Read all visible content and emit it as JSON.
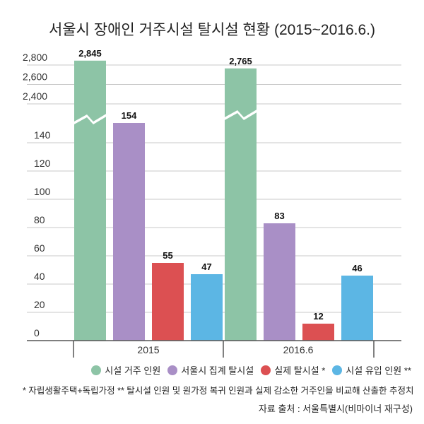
{
  "chart_data": {
    "type": "bar",
    "title": "서울시 장애인 거주시설 탈시설 현황 (2015~2016.6.)",
    "categories": [
      "2015",
      "2016.6"
    ],
    "series": [
      {
        "name": "시설 거주 인원",
        "color": "#8dc4a6",
        "values": [
          2845,
          2765
        ]
      },
      {
        "name": "서울시 집계 탈시설",
        "color": "#a98fc6",
        "values": [
          154,
          83
        ]
      },
      {
        "name": "실제 탈시설 *",
        "color": "#dc5052",
        "values": [
          55,
          12
        ]
      },
      {
        "name": "시설 유입 인원 **",
        "color": "#5cb6e4",
        "values": [
          47,
          46
        ]
      }
    ],
    "data_labels": [
      [
        "2,845",
        "154",
        "55",
        "47"
      ],
      [
        "2,765",
        "83",
        "12",
        "46"
      ]
    ],
    "y_axis": {
      "broken": true,
      "lower_range": [
        0,
        140
      ],
      "upper_range": [
        2400,
        2800
      ],
      "lower_ticks": [
        "0",
        "20",
        "40",
        "60",
        "80",
        "100",
        "120",
        "140"
      ],
      "upper_ticks": [
        "2,400",
        "2,600",
        "2,800"
      ]
    },
    "grid": true,
    "legend_position": "bottom-right"
  },
  "footnote": "* 자립생활주택+독립가정 ** 탈시설 인원 및 원가정 복귀 인원과 실제 감소한 거주인을 비교해 산출한 추정치",
  "source": "자료 출처 : 서울특별시(비마이너 재구성)"
}
